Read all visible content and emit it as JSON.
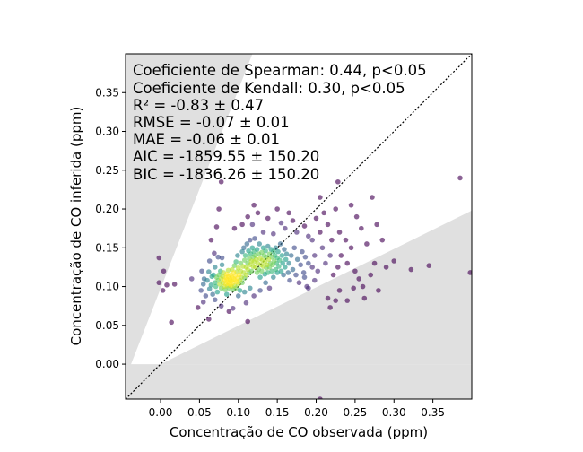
{
  "chart_data": {
    "type": "scatter",
    "xlabel": "Concentração de CO observada (ppm)",
    "ylabel": "Concentração de CO inferida (ppm)",
    "xlim": [
      -0.045,
      0.4
    ],
    "ylim": [
      -0.045,
      0.4
    ],
    "xticks": [
      0.0,
      0.05,
      0.1,
      0.15,
      0.2,
      0.25,
      0.3,
      0.35
    ],
    "yticks": [
      0.0,
      0.05,
      0.1,
      0.15,
      0.2,
      0.25,
      0.3,
      0.35
    ],
    "xtick_labels": [
      "0.00",
      "0.05",
      "0.10",
      "0.15",
      "0.20",
      "0.25",
      "0.30",
      "0.35"
    ],
    "ytick_labels": [
      "0.00",
      "0.05",
      "0.10",
      "0.15",
      "0.20",
      "0.25",
      "0.30",
      "0.35"
    ],
    "reference_line": "y = x (dotted black)",
    "shaded_regions_color": "#e0e0e0",
    "colormap": "viridis (point density)",
    "stats": [
      "Coeficiente de Spearman: 0.44, p<0.05",
      "Coeficiente de Kendall: 0.30, p<0.05",
      "R² = -0.83 ± 0.47",
      "RMSE = -0.07 ± 0.01",
      "MAE = -0.06 ± 0.01",
      "AIC = -1859.55 ± 150.20",
      "BIC = -1836.26 ± 150.20"
    ],
    "points": [
      [
        -0.002,
        0.137
      ],
      [
        0.004,
        0.12
      ],
      [
        -0.002,
        0.105
      ],
      [
        0.003,
        0.095
      ],
      [
        0.008,
        0.102
      ],
      [
        0.014,
        0.054
      ],
      [
        0.018,
        0.103
      ],
      [
        0.04,
        0.11
      ],
      [
        0.048,
        0.073
      ],
      [
        0.052,
        0.095
      ],
      [
        0.053,
        0.12
      ],
      [
        0.055,
        0.103
      ],
      [
        0.056,
        0.11
      ],
      [
        0.058,
        0.088
      ],
      [
        0.06,
        0.108
      ],
      [
        0.062,
        0.119
      ],
      [
        0.063,
        0.097
      ],
      [
        0.063,
        0.133
      ],
      [
        0.065,
        0.16
      ],
      [
        0.065,
        0.102
      ],
      [
        0.066,
        0.113
      ],
      [
        0.067,
        0.09
      ],
      [
        0.068,
        0.115
      ],
      [
        0.069,
        0.143
      ],
      [
        0.07,
        0.125
      ],
      [
        0.07,
        0.105
      ],
      [
        0.071,
        0.1
      ],
      [
        0.072,
        0.112
      ],
      [
        0.072,
        0.177
      ],
      [
        0.073,
        0.093
      ],
      [
        0.074,
        0.138
      ],
      [
        0.074,
        0.108
      ],
      [
        0.075,
        0.115
      ],
      [
        0.076,
        0.103
      ],
      [
        0.077,
        0.12
      ],
      [
        0.078,
        0.098
      ],
      [
        0.078,
        0.11
      ],
      [
        0.079,
        0.128
      ],
      [
        0.079,
        0.137
      ],
      [
        0.08,
        0.105
      ],
      [
        0.08,
        0.113
      ],
      [
        0.081,
        0.118
      ],
      [
        0.082,
        0.1
      ],
      [
        0.082,
        0.108
      ],
      [
        0.083,
        0.096
      ],
      [
        0.084,
        0.112
      ],
      [
        0.084,
        0.103
      ],
      [
        0.085,
        0.109
      ],
      [
        0.085,
        0.116
      ],
      [
        0.086,
        0.101
      ],
      [
        0.086,
        0.106
      ],
      [
        0.087,
        0.113
      ],
      [
        0.087,
        0.121
      ],
      [
        0.088,
        0.098
      ],
      [
        0.088,
        0.104
      ],
      [
        0.089,
        0.11
      ],
      [
        0.089,
        0.108
      ],
      [
        0.09,
        0.102
      ],
      [
        0.09,
        0.115
      ],
      [
        0.091,
        0.1
      ],
      [
        0.091,
        0.107
      ],
      [
        0.092,
        0.112
      ],
      [
        0.092,
        0.122
      ],
      [
        0.093,
        0.096
      ],
      [
        0.093,
        0.105
      ],
      [
        0.094,
        0.11
      ],
      [
        0.094,
        0.118
      ],
      [
        0.095,
        0.101
      ],
      [
        0.095,
        0.127
      ],
      [
        0.096,
        0.108
      ],
      [
        0.096,
        0.114
      ],
      [
        0.097,
        0.098
      ],
      [
        0.097,
        0.132
      ],
      [
        0.098,
        0.106
      ],
      [
        0.098,
        0.119
      ],
      [
        0.099,
        0.111
      ],
      [
        0.099,
        0.14
      ],
      [
        0.1,
        0.103
      ],
      [
        0.1,
        0.124
      ],
      [
        0.101,
        0.115
      ],
      [
        0.102,
        0.108
      ],
      [
        0.102,
        0.095
      ],
      [
        0.103,
        0.13
      ],
      [
        0.103,
        0.12
      ],
      [
        0.104,
        0.112
      ],
      [
        0.105,
        0.145
      ],
      [
        0.105,
        0.105
      ],
      [
        0.106,
        0.126
      ],
      [
        0.107,
        0.118
      ],
      [
        0.107,
        0.15
      ],
      [
        0.108,
        0.134
      ],
      [
        0.108,
        0.111
      ],
      [
        0.109,
        0.14
      ],
      [
        0.11,
        0.125
      ],
      [
        0.11,
        0.115
      ],
      [
        0.111,
        0.155
      ],
      [
        0.112,
        0.13
      ],
      [
        0.112,
        0.122
      ],
      [
        0.113,
        0.146
      ],
      [
        0.114,
        0.136
      ],
      [
        0.114,
        0.118
      ],
      [
        0.115,
        0.16
      ],
      [
        0.115,
        0.128
      ],
      [
        0.116,
        0.142
      ],
      [
        0.117,
        0.133
      ],
      [
        0.117,
        0.12
      ],
      [
        0.118,
        0.15
      ],
      [
        0.119,
        0.138
      ],
      [
        0.119,
        0.126
      ],
      [
        0.12,
        0.145
      ],
      [
        0.12,
        0.132
      ],
      [
        0.121,
        0.162
      ],
      [
        0.122,
        0.14
      ],
      [
        0.122,
        0.125
      ],
      [
        0.123,
        0.135
      ],
      [
        0.124,
        0.148
      ],
      [
        0.124,
        0.118
      ],
      [
        0.125,
        0.13
      ],
      [
        0.126,
        0.142
      ],
      [
        0.126,
        0.122
      ],
      [
        0.127,
        0.155
      ],
      [
        0.128,
        0.136
      ],
      [
        0.128,
        0.112
      ],
      [
        0.129,
        0.128
      ],
      [
        0.13,
        0.144
      ],
      [
        0.13,
        0.12
      ],
      [
        0.131,
        0.134
      ],
      [
        0.132,
        0.15
      ],
      [
        0.132,
        0.126
      ],
      [
        0.133,
        0.14
      ],
      [
        0.134,
        0.116
      ],
      [
        0.134,
        0.132
      ],
      [
        0.135,
        0.146
      ],
      [
        0.136,
        0.124
      ],
      [
        0.136,
        0.138
      ],
      [
        0.137,
        0.128
      ],
      [
        0.138,
        0.152
      ],
      [
        0.138,
        0.118
      ],
      [
        0.139,
        0.135
      ],
      [
        0.14,
        0.142
      ],
      [
        0.14,
        0.125
      ],
      [
        0.141,
        0.13
      ],
      [
        0.142,
        0.148
      ],
      [
        0.143,
        0.12
      ],
      [
        0.143,
        0.138
      ],
      [
        0.144,
        0.128
      ],
      [
        0.145,
        0.145
      ],
      [
        0.145,
        0.112
      ],
      [
        0.146,
        0.133
      ],
      [
        0.147,
        0.14
      ],
      [
        0.148,
        0.122
      ],
      [
        0.148,
        0.15
      ],
      [
        0.149,
        0.13
      ],
      [
        0.15,
        0.137
      ],
      [
        0.15,
        0.118
      ],
      [
        0.151,
        0.145
      ],
      [
        0.152,
        0.126
      ],
      [
        0.153,
        0.134
      ],
      [
        0.154,
        0.155
      ],
      [
        0.155,
        0.12
      ],
      [
        0.156,
        0.14
      ],
      [
        0.157,
        0.13
      ],
      [
        0.158,
        0.115
      ],
      [
        0.159,
        0.148
      ],
      [
        0.16,
        0.125
      ],
      [
        0.161,
        0.135
      ],
      [
        0.162,
        0.142
      ],
      [
        0.164,
        0.118
      ],
      [
        0.165,
        0.13
      ],
      [
        0.166,
        0.108
      ],
      [
        0.168,
        0.14
      ],
      [
        0.17,
        0.122
      ],
      [
        0.172,
        0.15
      ],
      [
        0.174,
        0.115
      ],
      [
        0.176,
        0.135
      ],
      [
        0.178,
        0.105
      ],
      [
        0.18,
        0.128
      ],
      [
        0.182,
        0.145
      ],
      [
        0.184,
        0.118
      ],
      [
        0.186,
        0.138
      ],
      [
        0.188,
        0.1
      ],
      [
        0.19,
        0.13
      ],
      [
        0.195,
        0.125
      ],
      [
        0.198,
        0.14
      ],
      [
        0.202,
        0.12
      ],
      [
        0.205,
        0.17
      ],
      [
        0.208,
        0.15
      ],
      [
        0.212,
        0.13
      ],
      [
        0.218,
        0.14
      ],
      [
        0.222,
        0.115
      ],
      [
        0.228,
        0.125
      ],
      [
        0.232,
        0.14
      ],
      [
        0.24,
        0.13
      ],
      [
        0.245,
        0.15
      ],
      [
        0.25,
        0.12
      ],
      [
        0.255,
        0.11
      ],
      [
        0.26,
        0.1
      ],
      [
        0.262,
        0.085
      ],
      [
        0.27,
        0.115
      ],
      [
        0.275,
        0.13
      ],
      [
        0.28,
        0.095
      ],
      [
        0.285,
        0.16
      ],
      [
        0.29,
        0.125
      ],
      [
        0.3,
        0.133
      ],
      [
        0.322,
        0.122
      ],
      [
        0.345,
        0.127
      ],
      [
        0.385,
        0.24
      ],
      [
        0.398,
        0.118
      ],
      [
        0.055,
        0.08
      ],
      [
        0.062,
        0.058
      ],
      [
        0.07,
        0.083
      ],
      [
        0.078,
        0.075
      ],
      [
        0.085,
        0.09
      ],
      [
        0.093,
        0.072
      ],
      [
        0.1,
        0.088
      ],
      [
        0.108,
        0.093
      ],
      [
        0.11,
        0.079
      ],
      [
        0.115,
        0.098
      ],
      [
        0.12,
        0.088
      ],
      [
        0.128,
        0.095
      ],
      [
        0.135,
        0.105
      ],
      [
        0.14,
        0.098
      ],
      [
        0.112,
        0.055
      ],
      [
        0.088,
        0.068
      ],
      [
        0.075,
        0.2
      ],
      [
        0.078,
        0.235
      ],
      [
        0.095,
        0.175
      ],
      [
        0.105,
        0.18
      ],
      [
        0.112,
        0.19
      ],
      [
        0.118,
        0.18
      ],
      [
        0.12,
        0.205
      ],
      [
        0.125,
        0.195
      ],
      [
        0.132,
        0.17
      ],
      [
        0.138,
        0.188
      ],
      [
        0.145,
        0.168
      ],
      [
        0.15,
        0.2
      ],
      [
        0.155,
        0.182
      ],
      [
        0.16,
        0.175
      ],
      [
        0.165,
        0.195
      ],
      [
        0.17,
        0.185
      ],
      [
        0.175,
        0.17
      ],
      [
        0.185,
        0.178
      ],
      [
        0.19,
        0.165
      ],
      [
        0.195,
        0.16
      ],
      [
        0.2,
        0.188
      ],
      [
        0.205,
        0.215
      ],
      [
        0.21,
        0.195
      ],
      [
        0.215,
        0.18
      ],
      [
        0.22,
        0.16
      ],
      [
        0.225,
        0.2
      ],
      [
        0.228,
        0.235
      ],
      [
        0.23,
        0.17
      ],
      [
        0.238,
        0.16
      ],
      [
        0.245,
        0.205
      ],
      [
        0.252,
        0.19
      ],
      [
        0.258,
        0.175
      ],
      [
        0.265,
        0.155
      ],
      [
        0.272,
        0.215
      ],
      [
        0.278,
        0.18
      ],
      [
        0.205,
        -0.045
      ],
      [
        0.215,
        0.085
      ],
      [
        0.225,
        0.082
      ],
      [
        0.218,
        0.073
      ],
      [
        0.19,
        0.098
      ],
      [
        0.198,
        0.108
      ],
      [
        0.185,
        0.112
      ],
      [
        0.23,
        0.095
      ],
      [
        0.24,
        0.082
      ],
      [
        0.248,
        0.098
      ]
    ]
  }
}
